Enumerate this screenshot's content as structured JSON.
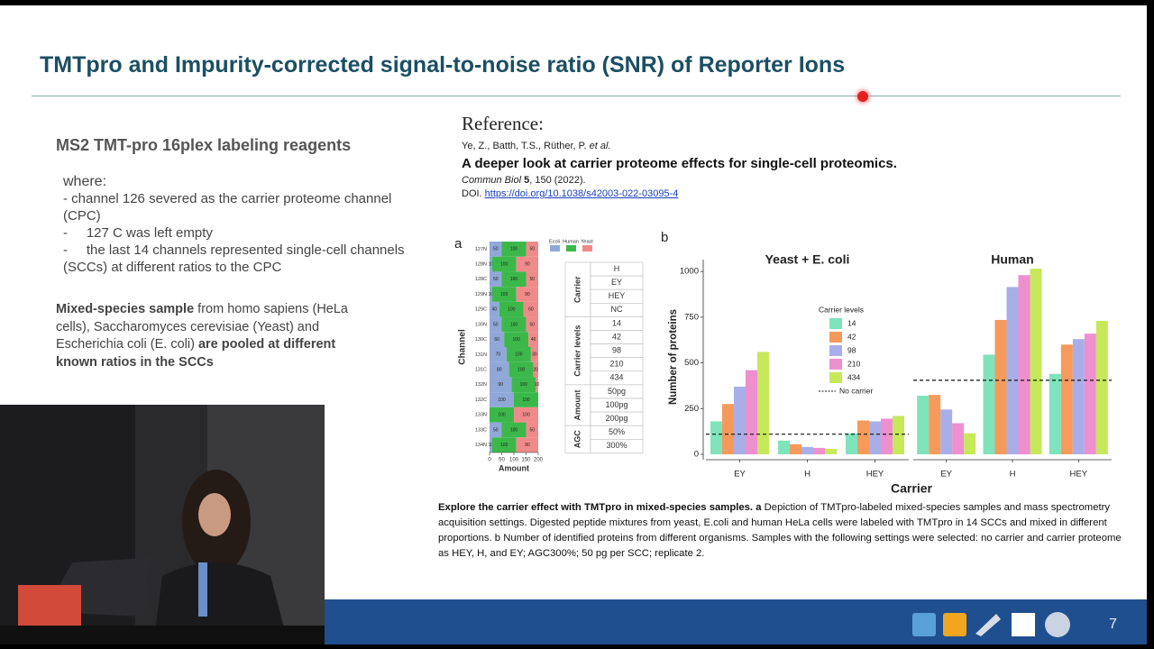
{
  "slide": {
    "title": "TMTpro and Impurity-corrected signal-to-noise ratio (SNR) of Reporter Ions",
    "page_number": "7"
  },
  "left": {
    "heading": "MS2 TMT-pro 16plex labeling reagents",
    "lines": [
      "where:",
      "- channel 126 severed as the carrier proteome channel (CPC)",
      "-     127 C was left empty",
      "-     the last 14 channels represented single-cell channels (SCCs) at different ratios to the CPC"
    ],
    "paragraph": [
      {
        "text": "Mixed-species sample",
        "bold": true
      },
      {
        "text": " from homo sapiens (HeLa cells), Saccharomyces cerevisiae (Yeast) and Escherichia coli (E. coli) ",
        "bold": false
      },
      {
        "text": "are pooled at different known ratios in the SCCs",
        "bold": true
      }
    ]
  },
  "reference": {
    "label": "Reference:",
    "authors": "Ye, Z., Batth, T.S., Rüther, P. ",
    "et_al": "et al.",
    "title": "A deeper look at carrier proteome effects for single-cell proteomics.",
    "journal": "Commun Biol",
    "volume": " 5",
    "pages": ", 150 (2022).",
    "doi_label": "DOI. ",
    "doi": "https://doi.org/10.1038/s42003-022-03095-4"
  },
  "figure": {
    "panel_a": {
      "label": "a",
      "y_label": "Channel",
      "x_label": "Amount",
      "xlim": [
        0,
        200
      ],
      "xticks": [
        0,
        50,
        100,
        150,
        200
      ],
      "categories": [
        "127N",
        "128N",
        "128C",
        "129N",
        "129C",
        "130N",
        "130C",
        "131N",
        "131C",
        "132N",
        "132C",
        "133N",
        "133C",
        "134N"
      ],
      "series": [
        {
          "name": "Ecoli",
          "color": "#8fa8d8",
          "values": [
            50,
            10,
            50,
            10,
            40,
            50,
            60,
            70,
            80,
            90,
            100,
            0,
            50,
            10
          ]
        },
        {
          "name": "Human",
          "color": "#3cb84a",
          "values": [
            100,
            100,
            100,
            100,
            100,
            100,
            100,
            100,
            100,
            100,
            100,
            100,
            100,
            100
          ]
        },
        {
          "name": "Yeast",
          "color": "#f08a8a",
          "values": [
            50,
            90,
            50,
            90,
            60,
            50,
            40,
            30,
            20,
            10,
            0,
            100,
            50,
            90
          ]
        }
      ],
      "table": [
        {
          "name": "Carrier",
          "items": [
            "H",
            "EY",
            "HEY",
            "NC"
          ]
        },
        {
          "name": "Carrier levels",
          "items": [
            "14",
            "42",
            "98",
            "210",
            "434"
          ]
        },
        {
          "name": "Amount",
          "items": [
            "50pg",
            "100pg",
            "200pg"
          ]
        },
        {
          "name": "AGC",
          "items": [
            "50%",
            "300%"
          ]
        }
      ]
    },
    "panel_b": {
      "label": "b",
      "type": "bar",
      "y_label": "Number of proteins",
      "x_label": "Carrier",
      "ylim": [
        0,
        1065
      ],
      "yticks": [
        0,
        250,
        500,
        750,
        1000
      ],
      "categories": [
        "EY",
        "H",
        "HEY"
      ],
      "legend_title": "Carrier levels",
      "no_carrier_label": "No carrier",
      "facets": [
        {
          "title": "Yeast + E. coli",
          "no_carrier": 110,
          "series": [
            {
              "name": "14",
              "color": "#7fe3bb",
              "values": [
                180,
                75,
                115
              ]
            },
            {
              "name": "42",
              "color": "#f59a5b",
              "values": [
                275,
                55,
                185
              ]
            },
            {
              "name": "98",
              "color": "#a9aee8",
              "values": [
                370,
                40,
                180
              ]
            },
            {
              "name": "210",
              "color": "#ee8fd0",
              "values": [
                460,
                35,
                195
              ]
            },
            {
              "name": "434",
              "color": "#c6e85a",
              "values": [
                560,
                30,
                210
              ]
            }
          ]
        },
        {
          "title": "Human",
          "no_carrier": 405,
          "series": [
            {
              "name": "14",
              "color": "#7fe3bb",
              "values": [
                320,
                545,
                440
              ]
            },
            {
              "name": "42",
              "color": "#f59a5b",
              "values": [
                325,
                735,
                600
              ]
            },
            {
              "name": "98",
              "color": "#a9aee8",
              "values": [
                245,
                915,
                630
              ]
            },
            {
              "name": "210",
              "color": "#ee8fd0",
              "values": [
                170,
                980,
                660
              ]
            },
            {
              "name": "434",
              "color": "#c6e85a",
              "values": [
                115,
                1015,
                730
              ]
            }
          ]
        }
      ]
    }
  },
  "caption": {
    "bold": "Explore the carrier effect with TMTpro in mixed-species samples. a",
    "text": " Depiction of TMTpro-labeled mixed-species samples and mass spectrometry acquisition settings. Digested peptide mixtures from yeast, E.coli and human HeLa cells were labeled with TMTpro in 14 SCCs and mixed in different proportions. b Number of identified proteins from different organisms. Samples with the following settings were selected: no carrier and carrier proteome as HEY, H, and EY; AGC300%; 50 pg per SCC; replicate 2."
  }
}
